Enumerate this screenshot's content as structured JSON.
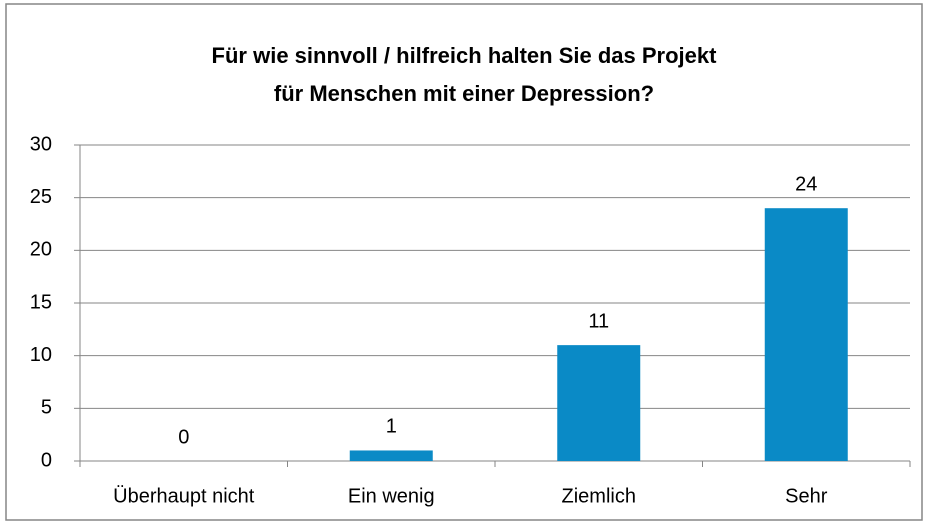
{
  "chart_data": {
    "type": "bar",
    "title": [
      "Für wie sinnvoll / hilfreich halten Sie das Projekt",
      "für Menschen mit einer Depression?"
    ],
    "categories": [
      "Überhaupt nicht",
      "Ein wenig",
      "Ziemlich",
      "Sehr"
    ],
    "values": [
      0,
      1,
      11,
      24
    ],
    "color": "#0a8ac6",
    "ylim": [
      0,
      30
    ],
    "yticks": [
      0,
      5,
      10,
      15,
      20,
      25,
      30
    ],
    "grid": true
  }
}
